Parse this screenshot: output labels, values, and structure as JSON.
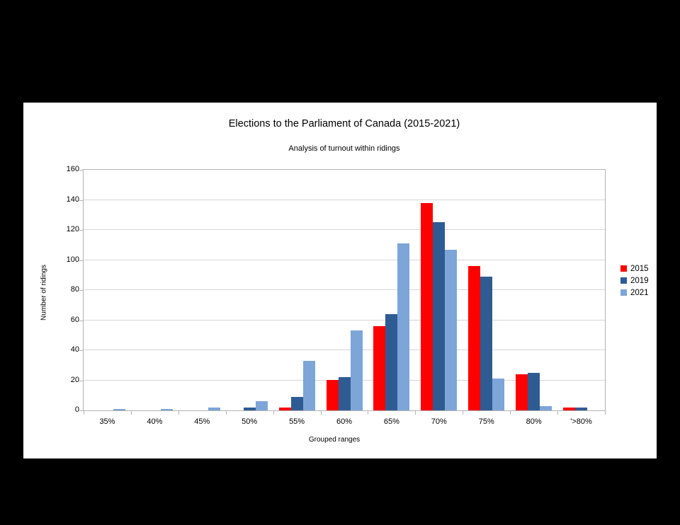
{
  "colors": {
    "page_background": "#000000",
    "chart_background": "#ffffff",
    "frame": "#b3b3b3",
    "gridline": "#d6d6d6",
    "text": "#000000"
  },
  "chart_data": {
    "type": "bar",
    "title": "Elections to the Parliament of Canada (2015-2021)",
    "subtitle": "Analysis of turnout within ridings",
    "xlabel": "Grouped ranges",
    "ylabel": "Number of ridings",
    "categories": [
      "35%",
      "40%",
      "45%",
      "50%",
      "55%",
      "60%",
      "65%",
      "70%",
      "75%",
      "80%",
      "'>80%"
    ],
    "series": [
      {
        "name": "2015",
        "color": "#ff0000",
        "values": [
          0,
          0,
          0,
          0,
          2,
          20,
          56,
          138,
          96,
          24,
          2
        ]
      },
      {
        "name": "2019",
        "color": "#2f5b93",
        "values": [
          0,
          0,
          0,
          2,
          9,
          22,
          64,
          125,
          89,
          25,
          2
        ]
      },
      {
        "name": "2021",
        "color": "#7da5d8",
        "values": [
          1,
          1,
          2,
          6,
          33,
          53,
          111,
          107,
          21,
          3,
          0
        ]
      }
    ],
    "ylim": [
      0,
      160
    ],
    "ytick_step": 20,
    "grid": true,
    "legend_position": "right",
    "legend_entries": [
      "2015",
      "2019",
      "2021"
    ]
  }
}
